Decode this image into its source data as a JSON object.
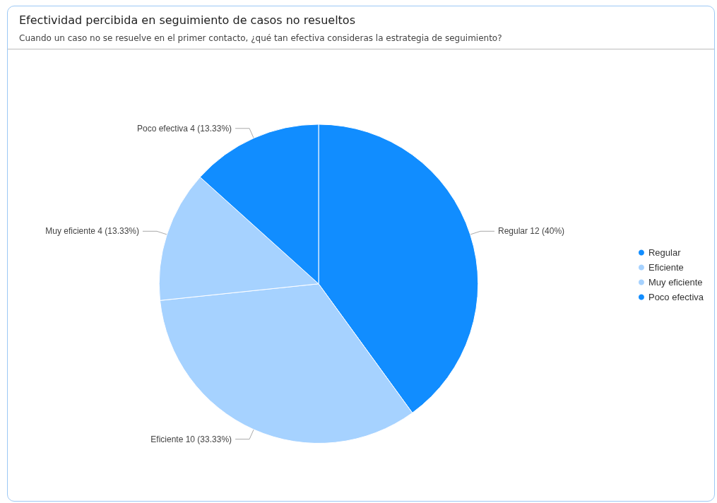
{
  "chart_data": {
    "type": "pie",
    "title": "Efectividad percibida en seguimiento de casos no resueltos",
    "subtitle": "Cuando un caso no se resuelve en el primer contacto, ¿qué tan efectiva consideras la estrategia de seguimiento?",
    "categories": [
      "Regular",
      "Eficiente",
      "Muy eficiente",
      "Poco efectiva"
    ],
    "values": [
      12,
      10,
      4,
      4
    ],
    "value_labels": [
      "12 (40%)",
      "10 (33.33%)",
      "4 (13.33%)",
      "4 (13.33%)"
    ],
    "colors": [
      "#118dff",
      "#a6d2ff",
      "#a6d2ff",
      "#118dff"
    ],
    "legend": "right"
  }
}
